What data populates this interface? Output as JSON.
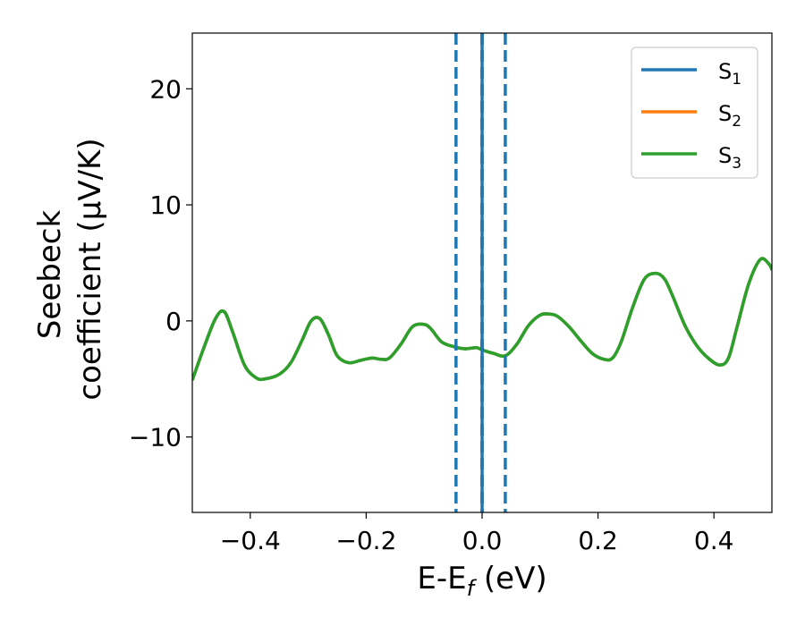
{
  "chart_data": {
    "type": "line",
    "xlabel": {
      "base": "E-E",
      "sub": "f",
      "unit": " (eV)"
    },
    "ylabel": {
      "line1": "Seebeck",
      "line2": "coefficient  (μV/K)"
    },
    "xlim": [
      -0.5,
      0.5
    ],
    "ylim": [
      -16.5,
      24.8
    ],
    "xticks": [
      -0.4,
      -0.2,
      0.0,
      0.2,
      0.4
    ],
    "xtick_labels": [
      "−0.4",
      "−0.2",
      "0.0",
      "0.2",
      "0.4"
    ],
    "yticks": [
      -10,
      0,
      10,
      20
    ],
    "ytick_labels": [
      "−10",
      "0",
      "10",
      "20"
    ],
    "grid": false,
    "legend_position": "top-right",
    "series": [
      {
        "name": "S",
        "sub": "1",
        "color": "#1f77b4"
      },
      {
        "name": "S",
        "sub": "2",
        "color": "#ff7f0e"
      },
      {
        "name": "S",
        "sub": "3",
        "color": "#2ca02c"
      }
    ],
    "x": [
      -0.5,
      -0.48,
      -0.46,
      -0.445,
      -0.43,
      -0.41,
      -0.39,
      -0.375,
      -0.35,
      -0.33,
      -0.31,
      -0.295,
      -0.28,
      -0.265,
      -0.25,
      -0.23,
      -0.21,
      -0.19,
      -0.175,
      -0.16,
      -0.14,
      -0.12,
      -0.1,
      -0.088,
      -0.07,
      -0.05,
      -0.03,
      -0.01,
      0.0,
      0.02,
      0.04,
      0.06,
      0.08,
      0.1,
      0.115,
      0.13,
      0.15,
      0.17,
      0.19,
      0.21,
      0.225,
      0.24,
      0.26,
      0.28,
      0.3,
      0.315,
      0.33,
      0.35,
      0.37,
      0.39,
      0.41,
      0.425,
      0.44,
      0.46,
      0.48,
      0.495,
      0.5
    ],
    "y": [
      -5.1,
      -2.3,
      0.2,
      0.8,
      -1.0,
      -3.8,
      -4.9,
      -5.0,
      -4.6,
      -3.6,
      -1.6,
      0.0,
      0.2,
      -1.2,
      -3.0,
      -3.6,
      -3.4,
      -3.2,
      -3.3,
      -3.2,
      -2.0,
      -0.5,
      -0.3,
      -0.7,
      -1.8,
      -2.2,
      -2.4,
      -2.3,
      -2.5,
      -2.8,
      -3.0,
      -2.0,
      -0.4,
      0.5,
      0.6,
      0.4,
      -0.5,
      -1.7,
      -2.8,
      -3.3,
      -3.2,
      -1.8,
      1.2,
      3.6,
      4.1,
      3.6,
      2.0,
      -0.4,
      -2.1,
      -3.2,
      -3.8,
      -3.2,
      -0.5,
      3.2,
      5.3,
      4.9,
      4.4
    ],
    "vlines": [
      {
        "x": -0.045,
        "style": "dashed",
        "color": "#1f77b4"
      },
      {
        "x": 0.04,
        "style": "dashed",
        "color": "#1f77b4"
      },
      {
        "x": 0.0,
        "style": "dashed",
        "color": "#000000"
      },
      {
        "x": 0.0,
        "style": "solid",
        "color": "#1f77b4"
      }
    ]
  }
}
